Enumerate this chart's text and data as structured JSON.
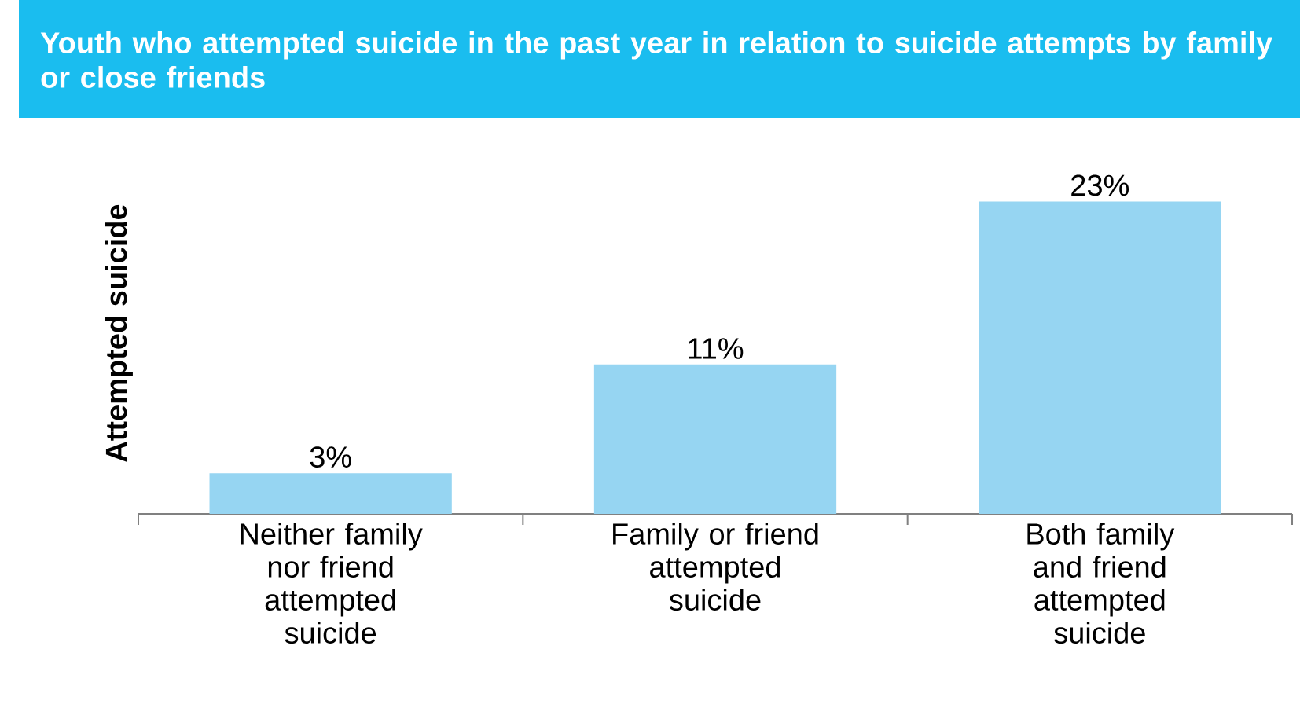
{
  "chart_data": {
    "type": "bar",
    "title": "Youth who attempted suicide in the past year in relation to suicide attempts by family or close friends",
    "ylabel": "Attempted suicide",
    "categories": [
      "Neither family nor friend attempted suicide",
      "Family or friend attempted suicide",
      "Both family and friend attempted suicide"
    ],
    "values": [
      3,
      11,
      23
    ],
    "value_labels": [
      "3%",
      "11%",
      "23%"
    ],
    "color": "#96d5f2"
  }
}
